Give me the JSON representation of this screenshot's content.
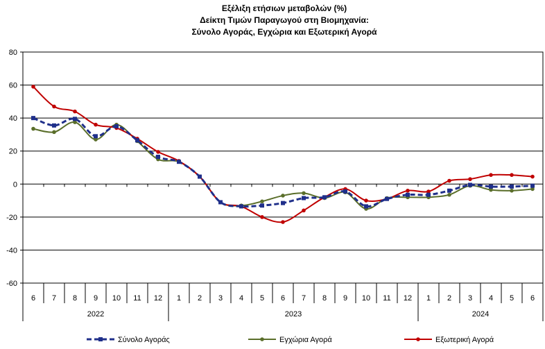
{
  "chart_data": {
    "type": "line",
    "title_lines": [
      "Εξέλιξη ετήσιων μεταβολών (%)",
      "Δείκτη Τιμών Παραγωγού στη Βιομηχανία:",
      "Σύνολο Αγοράς, Εγχώρια και Εξωτερική Αγορά"
    ],
    "months": [
      "6",
      "7",
      "8",
      "9",
      "10",
      "11",
      "12",
      "1",
      "2",
      "3",
      "4",
      "5",
      "6",
      "7",
      "8",
      "9",
      "10",
      "11",
      "12",
      "1",
      "2",
      "3",
      "4",
      "5",
      "6"
    ],
    "years": [
      {
        "label": "2022",
        "start": 0,
        "end": 6
      },
      {
        "label": "2023",
        "start": 7,
        "end": 18
      },
      {
        "label": "2024",
        "start": 19,
        "end": 24
      }
    ],
    "ylim": [
      -60,
      80
    ],
    "yticks": [
      -60,
      -40,
      -20,
      0,
      20,
      40,
      60,
      80
    ],
    "grid": true,
    "legend_position": "bottom",
    "series": [
      {
        "name": "Σύνολο Αγοράς",
        "color": "#1f2f8a",
        "style": "dashed",
        "marker": "square",
        "values": [
          40,
          35.5,
          39.5,
          29,
          35,
          26.5,
          16.5,
          13.5,
          4.5,
          -11,
          -13.5,
          -13,
          -11.5,
          -8.5,
          -8,
          -4.5,
          -13.5,
          -9,
          -6.5,
          -6.5,
          -4,
          -0.5,
          -1.5,
          -1.5,
          -1
        ]
      },
      {
        "name": "Εγχώρια Αγορά",
        "color": "#5a6e2a",
        "style": "solid",
        "marker": "dot",
        "values": [
          33.5,
          31.5,
          37.5,
          27,
          36,
          26,
          15,
          13.5,
          4.5,
          -11,
          -13,
          -10.5,
          -7,
          -5.5,
          -8.5,
          -5,
          -15,
          -8.5,
          -8,
          -8,
          -6.5,
          -1,
          -3.5,
          -4,
          -3
        ]
      },
      {
        "name": "Εξωτερική Αγορά",
        "color": "#c00000",
        "style": "solid",
        "marker": "dot",
        "values": [
          59,
          47,
          44,
          36,
          34,
          27.5,
          19.5,
          14,
          4.5,
          -11,
          -13.5,
          -20,
          -23,
          -16,
          -8,
          -3,
          -10,
          -9,
          -4,
          -4.5,
          2,
          3,
          5.5,
          5.5,
          4.5
        ]
      }
    ]
  }
}
